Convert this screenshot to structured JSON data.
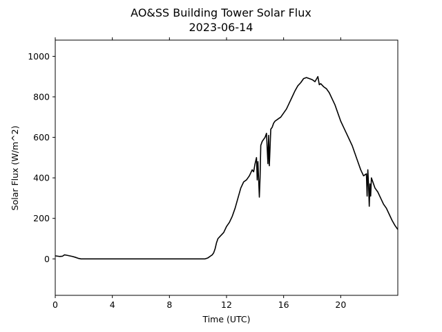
{
  "chart_data": {
    "type": "line",
    "title": "AO&SS Building Tower Solar Flux",
    "subtitle": "2023-06-14",
    "xlabel": "Time (UTC)",
    "ylabel": "Solar Flux (W/m^2)",
    "xlim": [
      0,
      24
    ],
    "ylim": [
      -180,
      1080
    ],
    "x_ticks": [
      0,
      4,
      8,
      12,
      16,
      20
    ],
    "x_tick_labels": [
      "0",
      "4",
      "8",
      "12",
      "16",
      "20"
    ],
    "y_ticks": [
      0,
      200,
      400,
      600,
      800,
      1000
    ],
    "y_tick_labels": [
      "0",
      "200",
      "400",
      "600",
      "800",
      "1000"
    ],
    "grid": false,
    "line_color": "#000000",
    "series": [
      {
        "x": [
          0,
          0.3,
          0.5,
          0.65,
          0.8,
          1.0,
          1.2,
          1.4,
          1.6,
          1.8,
          2.0,
          4.0,
          8.0,
          10.0,
          10.5,
          10.7,
          10.9,
          11.0,
          11.1,
          11.2,
          11.3,
          11.4,
          11.6,
          11.8,
          12.0,
          12.2,
          12.4,
          12.6,
          12.8,
          13.0,
          13.2,
          13.4,
          13.6,
          13.8,
          13.9,
          14.0,
          14.1,
          14.15,
          14.2,
          14.3,
          14.35,
          14.4,
          14.5,
          14.6,
          14.7,
          14.8,
          14.9,
          14.95,
          15.0,
          15.1,
          15.2,
          15.3,
          15.4,
          15.6,
          15.8,
          16.0,
          16.2,
          16.4,
          16.6,
          16.8,
          17.0,
          17.2,
          17.4,
          17.6,
          17.8,
          18.0,
          18.2,
          18.4,
          18.5,
          18.6,
          18.8,
          19.0,
          19.2,
          19.4,
          19.6,
          19.8,
          20.0,
          20.2,
          20.4,
          20.6,
          20.8,
          21.0,
          21.2,
          21.4,
          21.6,
          21.8,
          21.85,
          21.9,
          21.95,
          22.0,
          22.05,
          22.1,
          22.15,
          22.2,
          22.4,
          22.6,
          22.8,
          23.0,
          23.2,
          23.4,
          23.6,
          23.8,
          24.0
        ],
        "y": [
          15,
          12,
          13,
          20,
          18,
          15,
          12,
          8,
          3,
          0,
          0,
          0,
          0,
          0,
          0,
          5,
          15,
          20,
          30,
          50,
          80,
          100,
          115,
          130,
          160,
          180,
          210,
          250,
          300,
          350,
          380,
          390,
          410,
          440,
          430,
          470,
          500,
          390,
          480,
          305,
          400,
          560,
          580,
          590,
          600,
          620,
          470,
          610,
          460,
          640,
          650,
          670,
          680,
          690,
          700,
          720,
          740,
          770,
          800,
          830,
          855,
          870,
          890,
          895,
          890,
          885,
          875,
          900,
          860,
          865,
          850,
          840,
          820,
          790,
          760,
          720,
          680,
          650,
          620,
          590,
          560,
          520,
          480,
          440,
          410,
          420,
          310,
          440,
          370,
          260,
          370,
          310,
          400,
          390,
          350,
          330,
          300,
          270,
          250,
          220,
          190,
          165,
          145
        ]
      }
    ]
  }
}
